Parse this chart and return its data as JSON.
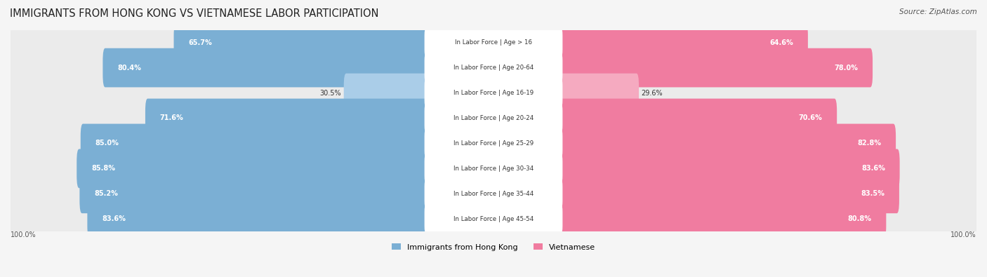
{
  "title": "IMMIGRANTS FROM HONG KONG VS VIETNAMESE LABOR PARTICIPATION",
  "source": "Source: ZipAtlas.com",
  "categories": [
    "In Labor Force | Age > 16",
    "In Labor Force | Age 20-64",
    "In Labor Force | Age 16-19",
    "In Labor Force | Age 20-24",
    "In Labor Force | Age 25-29",
    "In Labor Force | Age 30-34",
    "In Labor Force | Age 35-44",
    "In Labor Force | Age 45-54"
  ],
  "hk_values": [
    65.7,
    80.4,
    30.5,
    71.6,
    85.0,
    85.8,
    85.2,
    83.6
  ],
  "viet_values": [
    64.6,
    78.0,
    29.6,
    70.6,
    82.8,
    83.6,
    83.5,
    80.8
  ],
  "hk_color": "#7bafd4",
  "hk_color_light": "#aacde8",
  "viet_color": "#f07ca0",
  "viet_color_light": "#f5aac0",
  "bg_color": "#f5f5f5",
  "row_bg": "#ebebeb",
  "label_bg": "#ffffff",
  "legend_hk": "Immigrants from Hong Kong",
  "legend_viet": "Vietnamese",
  "bar_height": 0.55,
  "max_val": 100.0
}
